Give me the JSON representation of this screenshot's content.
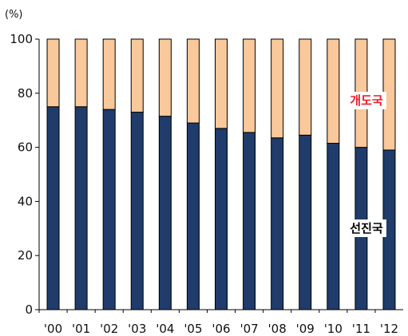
{
  "chart_data": {
    "type": "bar",
    "stacked": true,
    "ylabel": "(%)",
    "ylim": [
      0,
      100
    ],
    "yticks": [
      "0",
      "20",
      "40",
      "60",
      "80",
      "100"
    ],
    "categories": [
      "'00",
      "'01",
      "'02",
      "'03",
      "'04",
      "'05",
      "'06",
      "'07",
      "'08",
      "'09",
      "'10",
      "'11",
      "'12"
    ],
    "series": [
      {
        "name": "선진국",
        "color": "#1f3c6a",
        "label_color": "#000000",
        "values": [
          75,
          75,
          74,
          73,
          71.5,
          69,
          67,
          65.5,
          63.5,
          64.5,
          61.5,
          60,
          59
        ]
      },
      {
        "name": "개도국",
        "color": "#f9c89b",
        "label_color": "#e8202a",
        "values": [
          25,
          25,
          26,
          27,
          28.5,
          31,
          33,
          34.5,
          36.5,
          35.5,
          38.5,
          40,
          41
        ]
      }
    ],
    "grid": false
  }
}
